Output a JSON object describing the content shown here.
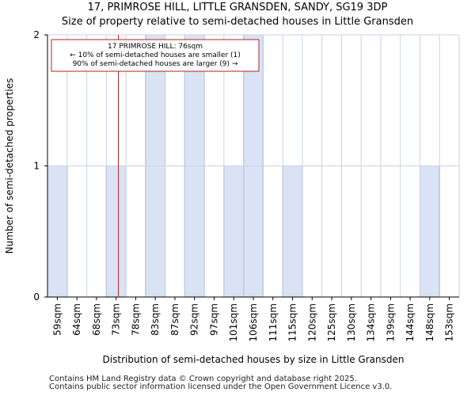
{
  "title_line1": "17, PRIMROSE HILL, LITTLE GRANSDEN, SANDY, SG19 3DP",
  "title_line2": "Size of property relative to semi-detached houses in Little Gransden",
  "footer_line1": "Contains HM Land Registry data © Crown copyright and database right 2025.",
  "footer_line2": "Contains public sector information licensed under the Open Government Licence v3.0.",
  "colors": {
    "bar_fill": "#dae3f3",
    "bar_stroke": "#4f81bd",
    "grid": "#c9d3e6",
    "marker": "#b22222",
    "axis": "#000000"
  },
  "chart_data": {
    "type": "bar",
    "categories": [
      "59sqm",
      "64sqm",
      "68sqm",
      "73sqm",
      "78sqm",
      "83sqm",
      "87sqm",
      "92sqm",
      "97sqm",
      "101sqm",
      "106sqm",
      "111sqm",
      "115sqm",
      "120sqm",
      "125sqm",
      "130sqm",
      "134sqm",
      "139sqm",
      "144sqm",
      "148sqm",
      "153sqm"
    ],
    "values": [
      1,
      0,
      0,
      1,
      0,
      2,
      0,
      2,
      0,
      1,
      2,
      0,
      1,
      0,
      0,
      0,
      0,
      0,
      0,
      1,
      0
    ],
    "xlabel": "Distribution of semi-detached houses by size in Little Gransden",
    "ylabel": "Number of semi-detached properties",
    "ylim": [
      0,
      2
    ],
    "yticks": [
      0,
      1,
      2
    ],
    "grid": true,
    "marker": {
      "value_sqm": 76,
      "annotation": [
        "17 PRIMROSE HILL: 76sqm",
        "← 10% of semi-detached houses are smaller (1)",
        "90% of semi-detached houses are larger (9) →"
      ]
    }
  }
}
